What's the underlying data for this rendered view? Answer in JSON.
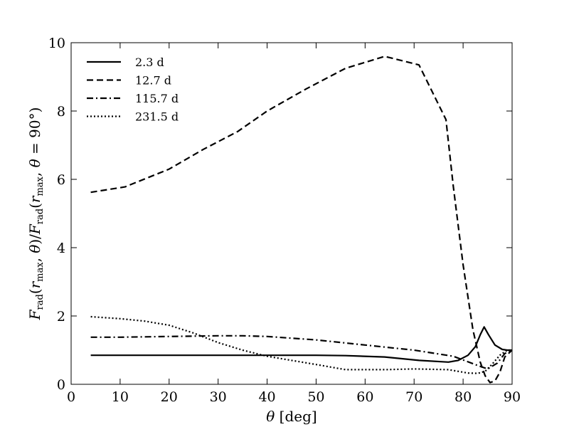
{
  "chart_data": {
    "type": "line",
    "title": "",
    "xlabel": "θ [deg]",
    "ylabel": "F_rad(r_max, θ)/F_rad(r_max, θ = 90°)",
    "xlim": [
      0,
      90
    ],
    "ylim": [
      0,
      10
    ],
    "xticks": [
      0,
      10,
      20,
      30,
      40,
      50,
      60,
      70,
      80,
      90
    ],
    "yticks": [
      0,
      2,
      4,
      6,
      8,
      10
    ],
    "grid": false,
    "legend_position": "top-left",
    "series": [
      {
        "name": "2.3 d",
        "style": "solid",
        "color": "#000000",
        "x": [
          4,
          10,
          20,
          30,
          40,
          50,
          56,
          64,
          71,
          77,
          79,
          81,
          82.5,
          83.5,
          84.3,
          85.2,
          86.5,
          88,
          89,
          90
        ],
        "y": [
          0.85,
          0.85,
          0.85,
          0.85,
          0.85,
          0.85,
          0.84,
          0.8,
          0.7,
          0.65,
          0.7,
          0.85,
          1.1,
          1.45,
          1.68,
          1.45,
          1.15,
          1.02,
          1.0,
          1.0
        ]
      },
      {
        "name": "12.7 d",
        "style": "dashed",
        "color": "#000000",
        "x": [
          4,
          11,
          20,
          27,
          34,
          40,
          48,
          56,
          64,
          71,
          76.5,
          78,
          80,
          82,
          83.5,
          84.5,
          85.5,
          86.5,
          87.5,
          88.5,
          90
        ],
        "y": [
          5.62,
          5.78,
          6.3,
          6.88,
          7.4,
          8.0,
          8.65,
          9.25,
          9.6,
          9.35,
          7.75,
          5.8,
          3.5,
          1.6,
          0.65,
          0.25,
          0.05,
          0.1,
          0.35,
          0.8,
          1.0
        ]
      },
      {
        "name": "115.7 d",
        "style": "dashdot",
        "color": "#000000",
        "x": [
          4,
          10,
          20,
          30,
          35,
          40,
          50,
          60,
          70,
          78,
          83,
          85,
          87,
          88.5,
          90
        ],
        "y": [
          1.38,
          1.38,
          1.4,
          1.42,
          1.42,
          1.4,
          1.3,
          1.15,
          1.0,
          0.82,
          0.55,
          0.45,
          0.62,
          0.9,
          1.0
        ]
      },
      {
        "name": "231.5 d",
        "style": "dotted",
        "color": "#000000",
        "x": [
          4,
          10,
          15,
          20,
          25,
          30,
          35,
          40,
          45,
          50,
          56,
          64,
          70,
          77,
          81,
          83,
          84.5,
          86,
          87.5,
          89,
          90
        ],
        "y": [
          1.98,
          1.92,
          1.85,
          1.73,
          1.5,
          1.22,
          1.0,
          0.82,
          0.7,
          0.58,
          0.43,
          0.43,
          0.45,
          0.43,
          0.33,
          0.32,
          0.38,
          0.6,
          0.85,
          1.0,
          1.0
        ]
      }
    ]
  }
}
